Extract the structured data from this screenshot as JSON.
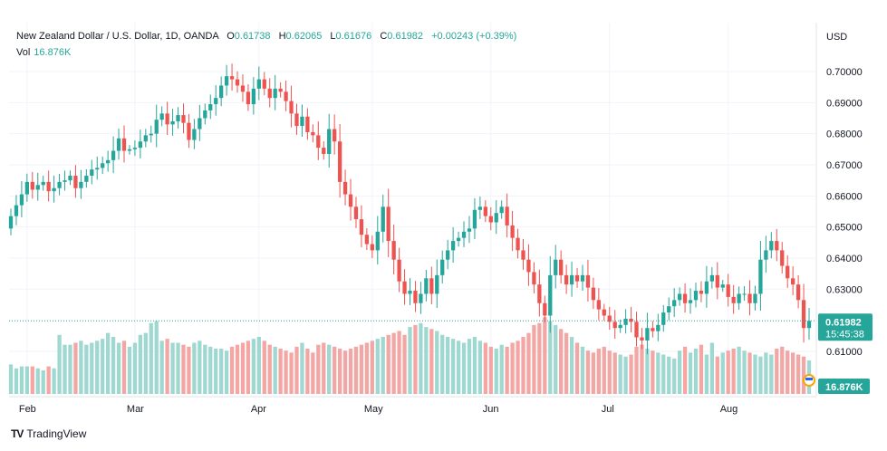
{
  "header": {
    "symbol": "New Zealand Dollar / U.S. Dollar, 1D, OANDA",
    "o_label": "O",
    "o_value": "0.61738",
    "h_label": "H",
    "h_value": "0.62065",
    "l_label": "L",
    "l_value": "0.61676",
    "c_label": "C",
    "c_value": "0.61982",
    "change": "+0.00243 (+0.39%)",
    "vol_label": "Vol",
    "vol_value": "16.876K"
  },
  "currency": "USD",
  "last_price": "0.61982",
  "countdown": "15:45:38",
  "volume_badge": "16.876K",
  "brand": "TradingView",
  "colors": {
    "up": "#26a69a",
    "down": "#ef5350",
    "up_vol": "#9fd8d1",
    "down_vol": "#f3a6a4",
    "grid": "#f0f3fa",
    "text": "#131722"
  },
  "chart_data": {
    "type": "candlestick",
    "y_ticks": [
      "0.70000",
      "0.69000",
      "0.68000",
      "0.67000",
      "0.66000",
      "0.65000",
      "0.64000",
      "0.63000",
      "0.61000"
    ],
    "ylim": [
      0.6043,
      0.7045
    ],
    "x_ticks": [
      {
        "label": "Feb",
        "index": 3
      },
      {
        "label": "Mar",
        "index": 23
      },
      {
        "label": "Apr",
        "index": 46
      },
      {
        "label": "May",
        "index": 67
      },
      {
        "label": "Jun",
        "index": 89
      },
      {
        "label": "Jul",
        "index": 111
      },
      {
        "label": "Aug",
        "index": 133
      }
    ],
    "closes": [
      0.6535,
      0.657,
      0.6605,
      0.6645,
      0.662,
      0.6635,
      0.6645,
      0.6615,
      0.6625,
      0.6645,
      0.665,
      0.6665,
      0.6625,
      0.6645,
      0.6665,
      0.6685,
      0.669,
      0.6705,
      0.6715,
      0.6745,
      0.6785,
      0.6745,
      0.675,
      0.6755,
      0.6775,
      0.6795,
      0.68,
      0.6845,
      0.6865,
      0.683,
      0.684,
      0.686,
      0.6835,
      0.678,
      0.6815,
      0.685,
      0.6875,
      0.6895,
      0.6915,
      0.6955,
      0.6985,
      0.6975,
      0.6955,
      0.6935,
      0.6895,
      0.6945,
      0.6975,
      0.6945,
      0.6915,
      0.6945,
      0.6935,
      0.6905,
      0.6865,
      0.6825,
      0.6855,
      0.6805,
      0.6795,
      0.6755,
      0.6735,
      0.6815,
      0.6775,
      0.6645,
      0.6605,
      0.6565,
      0.6525,
      0.6475,
      0.6445,
      0.6425,
      0.6485,
      0.6565,
      0.6455,
      0.6395,
      0.6325,
      0.6285,
      0.6295,
      0.6255,
      0.6285,
      0.6335,
      0.6285,
      0.6345,
      0.6395,
      0.6425,
      0.6455,
      0.6465,
      0.6485,
      0.6495,
      0.6555,
      0.6565,
      0.6535,
      0.6515,
      0.6545,
      0.6565,
      0.6505,
      0.6465,
      0.6425,
      0.6395,
      0.6355,
      0.6315,
      0.6255,
      0.6215,
      0.6345,
      0.6395,
      0.6345,
      0.6315,
      0.6345,
      0.6325,
      0.6345,
      0.6305,
      0.6265,
      0.6235,
      0.6215,
      0.6195,
      0.6175,
      0.6185,
      0.6205,
      0.6195,
      0.6145,
      0.6135,
      0.6175,
      0.6165,
      0.6185,
      0.6225,
      0.6245,
      0.6265,
      0.6285,
      0.6255,
      0.6265,
      0.6295,
      0.6285,
      0.6325,
      0.6345,
      0.6305,
      0.6315,
      0.6275,
      0.6255,
      0.6285,
      0.6285,
      0.6255,
      0.6285,
      0.6395,
      0.6425,
      0.6455,
      0.6425,
      0.6375,
      0.6335,
      0.6315,
      0.6265,
      0.6175,
      0.6198
    ],
    "volumes": [
      1.5,
      1.3,
      1.4,
      1.4,
      1.4,
      1.3,
      1.2,
      1.4,
      1.3,
      3.0,
      2.5,
      2.5,
      2.6,
      2.7,
      2.5,
      2.6,
      2.7,
      2.8,
      3.1,
      2.9,
      2.6,
      2.7,
      2.4,
      2.6,
      3.0,
      3.1,
      3.6,
      3.7,
      2.7,
      2.8,
      2.6,
      2.6,
      2.5,
      2.4,
      2.6,
      2.7,
      2.5,
      2.4,
      2.3,
      2.3,
      2.2,
      2.4,
      2.5,
      2.6,
      2.7,
      2.8,
      2.9,
      2.7,
      2.5,
      2.4,
      2.3,
      2.2,
      2.1,
      2.4,
      2.6,
      2.3,
      2.1,
      2.5,
      2.6,
      2.5,
      2.4,
      2.3,
      2.2,
      2.3,
      2.4,
      2.5,
      2.6,
      2.7,
      2.8,
      2.9,
      3.0,
      3.1,
      3.2,
      3.0,
      3.4,
      3.5,
      3.6,
      3.4,
      3.3,
      3.2,
      3.0,
      2.9,
      2.8,
      2.7,
      2.6,
      2.8,
      2.9,
      2.7,
      2.6,
      2.4,
      2.3,
      2.5,
      2.4,
      2.6,
      2.7,
      2.9,
      3.1,
      3.5,
      3.6,
      3.9,
      3.7,
      3.5,
      3.3,
      3.1,
      2.9,
      2.6,
      2.4,
      2.2,
      2.1,
      2.3,
      2.4,
      2.2,
      2.1,
      2.0,
      1.9,
      2.0,
      2.4,
      2.5,
      2.3,
      2.2,
      2.1,
      2.0,
      1.9,
      1.8,
      2.2,
      2.4,
      2.1,
      2.3,
      2.5,
      2.0,
      2.6,
      1.9,
      2.1,
      2.2,
      2.3,
      2.4,
      2.2,
      2.1,
      2.0,
      1.9,
      2.1,
      2.0,
      2.3,
      2.4,
      2.2,
      2.1,
      2.0,
      1.9,
      1.7,
      1.6875
    ]
  }
}
